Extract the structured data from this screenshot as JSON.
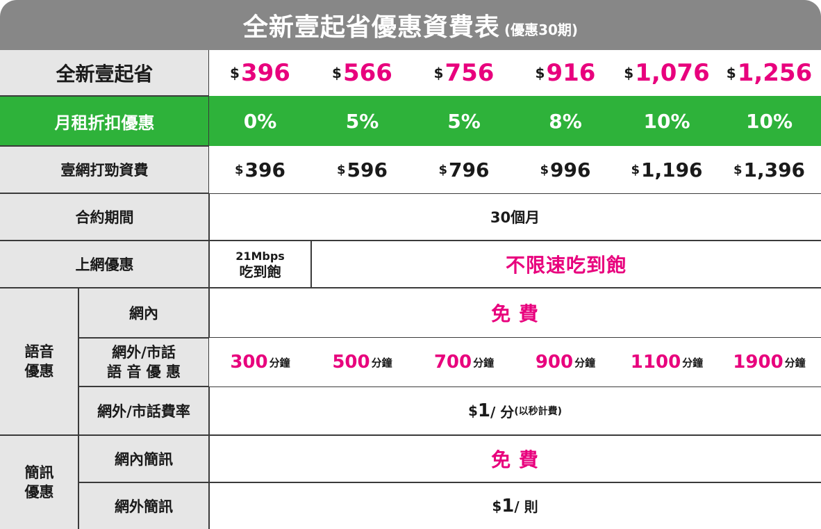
{
  "title": {
    "main": "全新壹起省優惠資費表",
    "sub": "(優惠30期)"
  },
  "currency": "$",
  "plans": [
    {
      "price": "396",
      "discount": "0%",
      "original": "396",
      "voice_offnet_minutes": "300"
    },
    {
      "price": "566",
      "discount": "5%",
      "original": "596",
      "voice_offnet_minutes": "500"
    },
    {
      "price": "756",
      "discount": "5%",
      "original": "796",
      "voice_offnet_minutes": "700"
    },
    {
      "price": "916",
      "discount": "8%",
      "original": "996",
      "voice_offnet_minutes": "900"
    },
    {
      "price": "1,076",
      "discount": "10%",
      "original": "1,196",
      "voice_offnet_minutes": "1100"
    },
    {
      "price": "1,256",
      "discount": "10%",
      "original": "1,396",
      "voice_offnet_minutes": "1900"
    }
  ],
  "rows": {
    "plan_name": "全新壹起省",
    "discount": "月租折扣優惠",
    "original": "壹網打勁資費",
    "contract": {
      "label": "合約期間",
      "value": "30個月"
    },
    "data": {
      "label": "上網優惠",
      "first_line1": "21Mbps",
      "first_line2": "吃到飽",
      "rest": "不限速吃到飽"
    },
    "voice": {
      "group_line1": "語音",
      "group_line2": "優惠",
      "onnet_label": "網內",
      "onnet_value": "免 費",
      "offnet_label_line1": "網外/市話",
      "offnet_label_line2": "語 音 優 惠",
      "minute_unit": "分鐘",
      "rate_label": "網外/市話費率",
      "rate_currency": "$",
      "rate_value": "1",
      "rate_unit": " / 分",
      "rate_note": "(以秒計費)"
    },
    "sms": {
      "group_line1": "簡訊",
      "group_line2": "優惠",
      "onnet_label": "網內簡訊",
      "onnet_value": "免 費",
      "offnet_label": "網外簡訊",
      "offnet_currency": "$",
      "offnet_value": "1",
      "offnet_unit": " / 則"
    }
  },
  "colors": {
    "header_grey": "#878787",
    "cell_grey": "#e6e6e6",
    "green": "#2eb23a",
    "magenta": "#e8007d"
  }
}
